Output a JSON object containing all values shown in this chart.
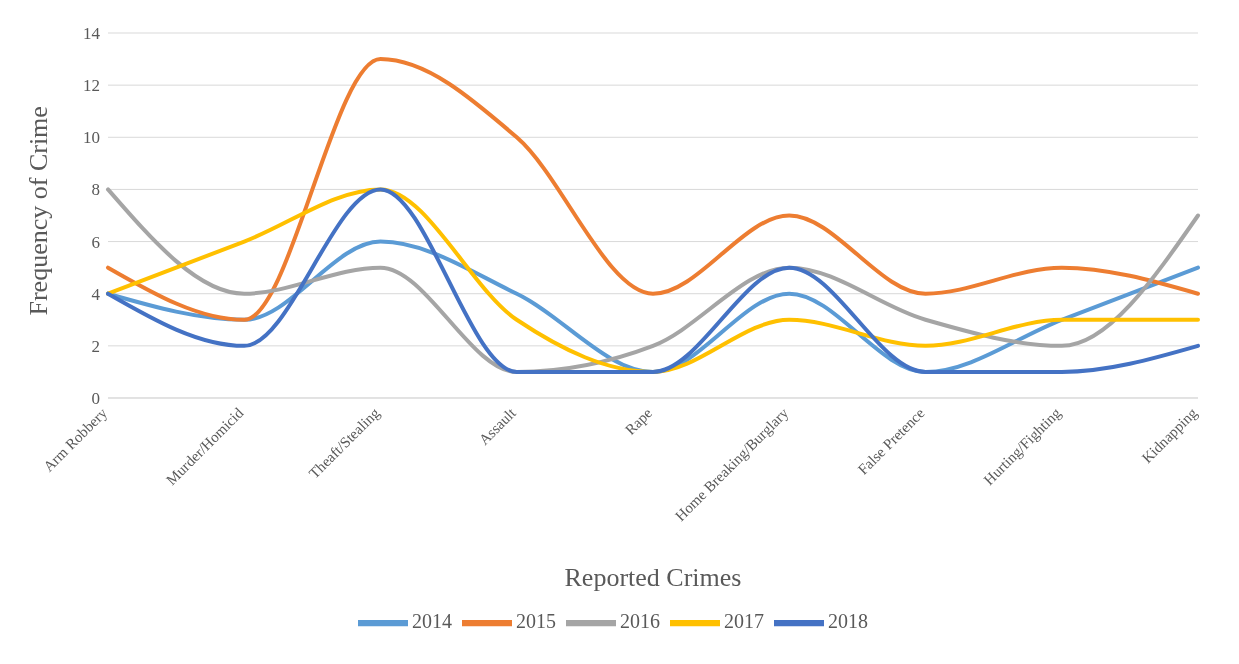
{
  "chart_data": {
    "type": "line",
    "xlabel": "Reported Crimes",
    "ylabel": "Frequency of Crime",
    "categories": [
      "Arm Robbery",
      "Murder/Homicid",
      "Theaft/Stealing",
      "Assault",
      "Rape",
      "Home Breaking/Burglary",
      "False Pretence",
      "Hurting/Fighting",
      "Kidnapping"
    ],
    "series": [
      {
        "name": "2014",
        "color": "#5b9bd5",
        "values": [
          4,
          3,
          6,
          4,
          1,
          4,
          1,
          3,
          5
        ]
      },
      {
        "name": "2015",
        "color": "#ed7d31",
        "values": [
          5,
          3,
          13,
          10,
          4,
          7,
          4,
          5,
          4
        ]
      },
      {
        "name": "2016",
        "color": "#a5a5a5",
        "values": [
          8,
          4,
          5,
          1,
          2,
          5,
          3,
          2,
          7
        ]
      },
      {
        "name": "2017",
        "color": "#ffc000",
        "values": [
          4,
          6,
          8,
          3,
          1,
          3,
          2,
          3,
          3
        ]
      },
      {
        "name": "2018",
        "color": "#4472c4",
        "values": [
          4,
          2,
          8,
          1,
          1,
          5,
          1,
          1,
          2
        ]
      }
    ],
    "ylim": [
      0,
      14
    ],
    "yticks": [
      0,
      2,
      4,
      6,
      8,
      10,
      12,
      14
    ],
    "grid": "y",
    "legend": "bottom",
    "marker": "none",
    "line_style": "solid"
  }
}
